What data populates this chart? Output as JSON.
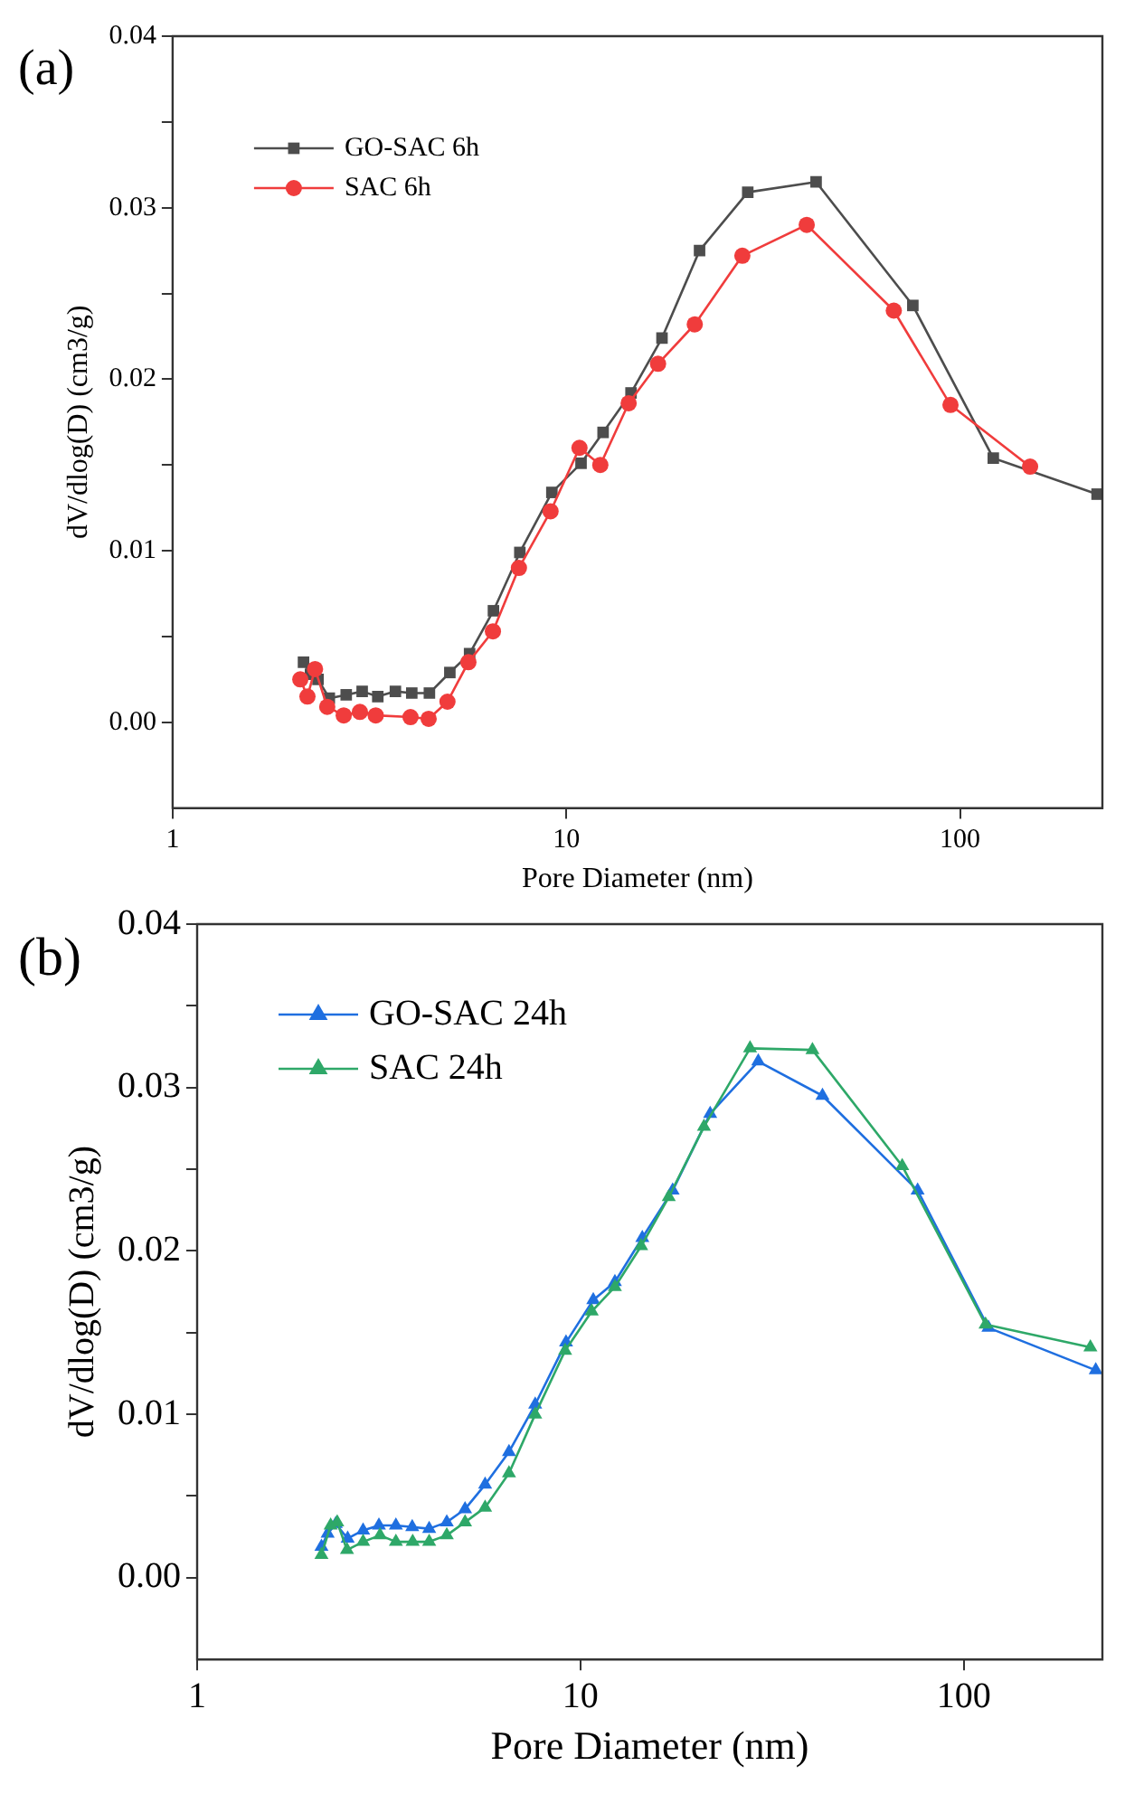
{
  "chart_data": [
    {
      "type": "line",
      "annotations": [
        "(a)"
      ],
      "xlabel": "Pore Diameter (nm)",
      "ylabel": "dV/dlog(D) (cm3/g)",
      "log": "x",
      "xlim": [
        1,
        230
      ],
      "xticks": [
        1,
        10,
        100
      ],
      "ylim": [
        -0.005,
        0.04
      ],
      "yticks": [
        {
          "value": 0.0,
          "label": "0.00"
        },
        {
          "value": 0.005,
          "label": null
        },
        {
          "value": 0.01,
          "label": "0.01"
        },
        {
          "value": 0.015,
          "label": null
        },
        {
          "value": 0.02,
          "label": "0.02"
        },
        {
          "value": 0.025,
          "label": null
        },
        {
          "value": 0.03,
          "label": "0.03"
        },
        {
          "value": 0.035,
          "label": null
        },
        {
          "value": 0.04,
          "label": "0.04"
        }
      ],
      "grid": false,
      "legend": "top left",
      "series": [
        {
          "name": "GO-SAC 6h",
          "color": "#4d4d4d",
          "marker": "square",
          "x": [
            2.15,
            2.24,
            2.34,
            2.5,
            2.76,
            3.03,
            3.32,
            3.68,
            4.05,
            4.49,
            5.06,
            5.68,
            6.53,
            7.62,
            9.19,
            10.9,
            12.4,
            14.6,
            17.5,
            21.8,
            28.9,
            43.1,
            75.9,
            121.5,
            223
          ],
          "values": [
            0.0035,
            0.0028,
            0.0025,
            0.0014,
            0.0016,
            0.0018,
            0.0015,
            0.0018,
            0.0017,
            0.0017,
            0.0029,
            0.004,
            0.0065,
            0.0099,
            0.0134,
            0.0151,
            0.0169,
            0.0192,
            0.0224,
            0.0275,
            0.0309,
            0.0315,
            0.0243,
            0.0154,
            0.0133
          ]
        },
        {
          "name": "SAC 6h",
          "color": "#f03c3c",
          "marker": "circle",
          "x": [
            2.11,
            2.2,
            2.3,
            2.47,
            2.72,
            2.99,
            3.28,
            4.02,
            4.47,
            4.99,
            5.64,
            6.51,
            7.58,
            9.12,
            10.8,
            12.2,
            14.4,
            17.1,
            21.2,
            28.0,
            40.8,
            67.9,
            94.6,
            150.7
          ],
          "values": [
            0.0025,
            0.0015,
            0.0031,
            0.0009,
            0.0004,
            0.0006,
            0.0004,
            0.0003,
            0.0002,
            0.0012,
            0.0035,
            0.0053,
            0.009,
            0.0123,
            0.016,
            0.015,
            0.0186,
            0.0209,
            0.0232,
            0.0272,
            0.029,
            0.024,
            0.0185,
            0.0149
          ]
        }
      ]
    },
    {
      "type": "line",
      "annotations": [
        "(b)"
      ],
      "xlabel": "Pore Diameter (nm)",
      "ylabel": "dV/dlog(D) (cm3/g)",
      "log": "x",
      "xlim": [
        1,
        230
      ],
      "xticks": [
        1,
        10,
        100
      ],
      "ylim": [
        -0.005,
        0.04
      ],
      "yticks": [
        {
          "value": 0.0,
          "label": "0.00"
        },
        {
          "value": 0.005,
          "label": null
        },
        {
          "value": 0.01,
          "label": "0.01"
        },
        {
          "value": 0.015,
          "label": null
        },
        {
          "value": 0.02,
          "label": "0.02"
        },
        {
          "value": 0.025,
          "label": null
        },
        {
          "value": 0.03,
          "label": "0.03"
        },
        {
          "value": 0.035,
          "label": null
        },
        {
          "value": 0.04,
          "label": "0.04"
        }
      ],
      "grid": false,
      "legend": "top left",
      "series": [
        {
          "name": "GO-SAC 24h",
          "color": "#1f6fe0",
          "marker": "triangle",
          "x": [
            2.11,
            2.19,
            2.3,
            2.47,
            2.71,
            2.98,
            3.3,
            3.64,
            4.03,
            4.48,
            5.0,
            5.64,
            6.51,
            7.62,
            9.17,
            10.8,
            12.3,
            14.5,
            17.4,
            21.8,
            29.1,
            42.8,
            75.8,
            116,
            221
          ],
          "values": [
            0.0019,
            0.0027,
            0.0033,
            0.0024,
            0.0029,
            0.0032,
            0.0032,
            0.0031,
            0.003,
            0.0034,
            0.0042,
            0.0057,
            0.0077,
            0.0106,
            0.0144,
            0.017,
            0.0181,
            0.0208,
            0.0237,
            0.0284,
            0.0316,
            0.0295,
            0.0237,
            0.0153,
            0.0127
          ]
        },
        {
          "name": "SAC 24h",
          "color": "#2ea868",
          "marker": "triangle",
          "x": [
            2.11,
            2.23,
            2.32,
            2.46,
            2.71,
            3.0,
            3.3,
            3.65,
            4.03,
            4.48,
            5.0,
            5.64,
            6.51,
            7.62,
            9.12,
            10.7,
            12.3,
            14.4,
            17.0,
            21.0,
            27.7,
            40.3,
            69.1,
            114,
            214
          ],
          "values": [
            0.0014,
            0.0032,
            0.0034,
            0.0017,
            0.0022,
            0.0026,
            0.0022,
            0.0022,
            0.0022,
            0.0026,
            0.0034,
            0.0043,
            0.0064,
            0.01,
            0.0139,
            0.0163,
            0.0178,
            0.0203,
            0.0233,
            0.0276,
            0.0324,
            0.0323,
            0.0252,
            0.0155,
            0.0141
          ]
        }
      ]
    }
  ]
}
